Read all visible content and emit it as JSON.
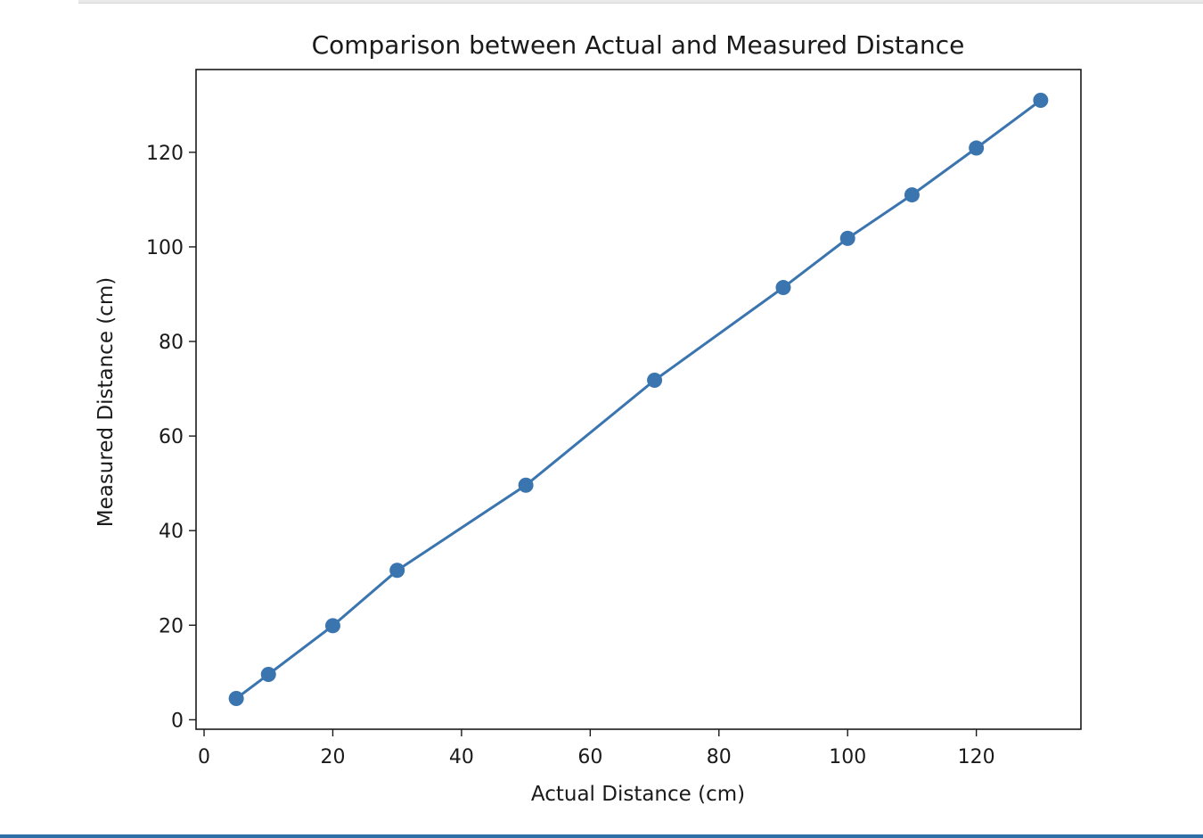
{
  "chart_data": {
    "type": "line",
    "title": "Comparison between Actual and Measured Distance",
    "xlabel": "Actual Distance (cm)",
    "ylabel": "Measured Distance (cm)",
    "xlim": [
      -1.25,
      136.25
    ],
    "ylim": [
      -2.0,
      137.5
    ],
    "xticks": [
      0,
      20,
      40,
      60,
      80,
      100,
      120
    ],
    "yticks": [
      0,
      20,
      40,
      60,
      80,
      100,
      120
    ],
    "grid": false,
    "series": [
      {
        "color": "#3b75af",
        "marker": "circle",
        "x": [
          5,
          10,
          20,
          30,
          50,
          70,
          90,
          100,
          110,
          120,
          130
        ],
        "y": [
          4.5,
          9.6,
          19.9,
          31.6,
          49.6,
          71.8,
          91.4,
          101.8,
          111.0,
          120.9,
          131.0
        ]
      }
    ]
  }
}
